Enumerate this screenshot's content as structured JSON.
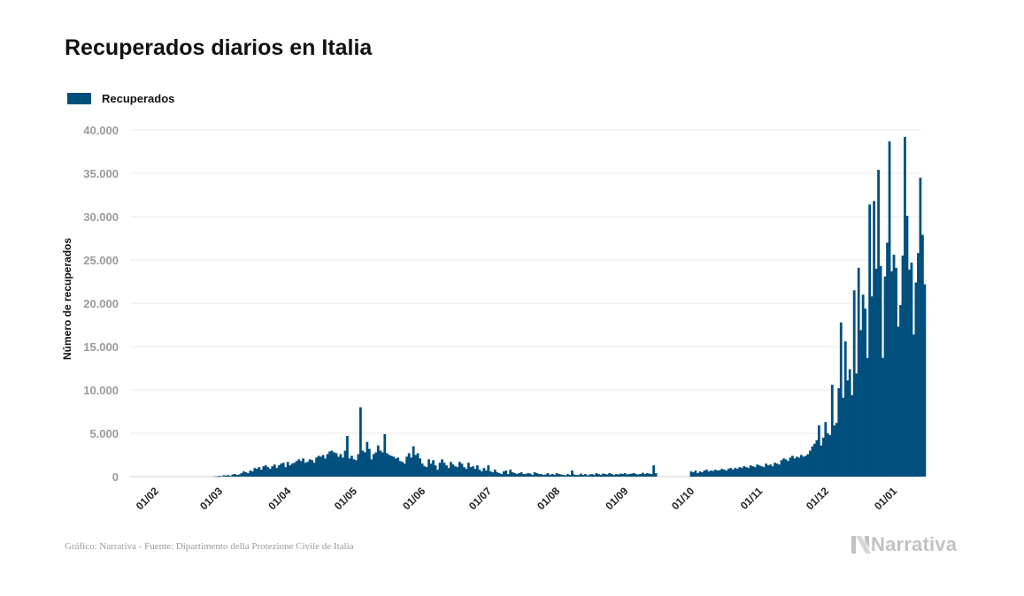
{
  "chart_data": {
    "type": "bar",
    "title": "Recuperados diarios en Italia",
    "legend": {
      "position": "top-left",
      "entries": [
        "Recuperados"
      ]
    },
    "ylabel": "Número de recuperados",
    "xlabel": "",
    "ylim": [
      0,
      40000
    ],
    "yticks": [
      0,
      5000,
      10000,
      15000,
      20000,
      25000,
      30000,
      35000,
      40000
    ],
    "ytick_labels": [
      "0",
      "5.000",
      "10.000",
      "15.000",
      "20.000",
      "25.000",
      "30.000",
      "35.000",
      "40.000"
    ],
    "xtick_labels": [
      "01/02",
      "01/03",
      "01/04",
      "01/05",
      "01/06",
      "01/07",
      "01/08",
      "01/09",
      "01/10",
      "01/11",
      "01/12",
      "01/01"
    ],
    "xlim": [
      "2020-01-22",
      "2021-01-15"
    ],
    "grid": true,
    "series": [
      {
        "name": "Recuperados",
        "color": "#004f7c",
        "start_date": "2020-02-24",
        "values": [
          0,
          0,
          0,
          0,
          0,
          50,
          20,
          100,
          50,
          150,
          120,
          180,
          80,
          250,
          300,
          200,
          250,
          400,
          600,
          500,
          400,
          700,
          600,
          1000,
          900,
          1100,
          800,
          1200,
          1300,
          1100,
          900,
          1200,
          1400,
          1000,
          1300,
          1500,
          1600,
          1100,
          1700,
          1300,
          1500,
          1600,
          1800,
          2000,
          1800,
          2100,
          1600,
          1700,
          2000,
          1900,
          1600,
          2200,
          2400,
          2300,
          2500,
          2100,
          2600,
          2900,
          3000,
          2800,
          2700,
          2300,
          2600,
          2200,
          3000,
          4700,
          2100,
          2400,
          2000,
          1900,
          2600,
          8000,
          3000,
          2800,
          4000,
          3200,
          2000,
          2600,
          2800,
          3600,
          3000,
          2800,
          4900,
          2700,
          2500,
          2400,
          2300,
          2100,
          2200,
          1800,
          1700,
          1500,
          2300,
          2700,
          2200,
          3500,
          2500,
          2700,
          2100,
          1500,
          1200,
          1100,
          2000,
          1500,
          1900,
          1300,
          800,
          1600,
          2000,
          1600,
          1300,
          1000,
          1700,
          1400,
          1200,
          1100,
          1700,
          1500,
          1100,
          900,
          1600,
          1100,
          1200,
          900,
          1300,
          800,
          600,
          1000,
          700,
          1300,
          600,
          500,
          800,
          500,
          400,
          300,
          600,
          700,
          300,
          800,
          500,
          400,
          300,
          400,
          500,
          300,
          300,
          400,
          350,
          200,
          500,
          400,
          300,
          300,
          200,
          250,
          400,
          200,
          300,
          200,
          400,
          300,
          250,
          200,
          150,
          300,
          200,
          700,
          250,
          200,
          200,
          350,
          200,
          300,
          150,
          250,
          300,
          200,
          400,
          300,
          200,
          350,
          300,
          250,
          400,
          300,
          200,
          300,
          250,
          350,
          300,
          400,
          250,
          300,
          350,
          400,
          300,
          250,
          300,
          450,
          300,
          400,
          350,
          300,
          1300,
          400,
          null,
          null,
          null,
          null,
          null,
          null,
          null,
          null,
          null,
          null,
          null,
          null,
          null,
          null,
          null,
          600,
          500,
          700,
          400,
          600,
          500,
          700,
          800,
          600,
          700,
          650,
          800,
          700,
          750,
          900,
          800,
          700,
          900,
          1000,
          800,
          1000,
          900,
          1100,
          1000,
          1200,
          1100,
          1000,
          1300,
          1200,
          1100,
          1400,
          1300,
          1200,
          1100,
          1500,
          1300,
          1400,
          1200,
          1600,
          1500,
          1400,
          1900,
          2100,
          2000,
          1800,
          2200,
          2400,
          2100,
          2300,
          2200,
          2500,
          2300,
          2400,
          2600,
          3000,
          3500,
          3800,
          4200,
          5900,
          3600,
          4500,
          6300,
          5000,
          4800,
          10600,
          5900,
          6200,
          10200,
          17800,
          9100,
          15600,
          11100,
          12400,
          9400,
          21500,
          11900,
          24100,
          16900,
          21000,
          19400,
          13700,
          31400,
          20800,
          31800,
          24000,
          35400,
          24300,
          13700,
          23100,
          27000,
          38700,
          23700,
          25600,
          24100,
          17300,
          19800,
          25500,
          39200,
          30100,
          23900,
          24700,
          16400,
          22400,
          25800,
          34500,
          27900,
          22200
        ]
      }
    ],
    "footer": {
      "source": "Gráfico: Narrativa - Fuente: Dipartimento della Protezione Civile de Italia",
      "brand": "Narrativa"
    },
    "colors": {
      "bar": "#004f7c",
      "grid": "#e8e8e8",
      "brand": "#c2c2c2"
    }
  }
}
